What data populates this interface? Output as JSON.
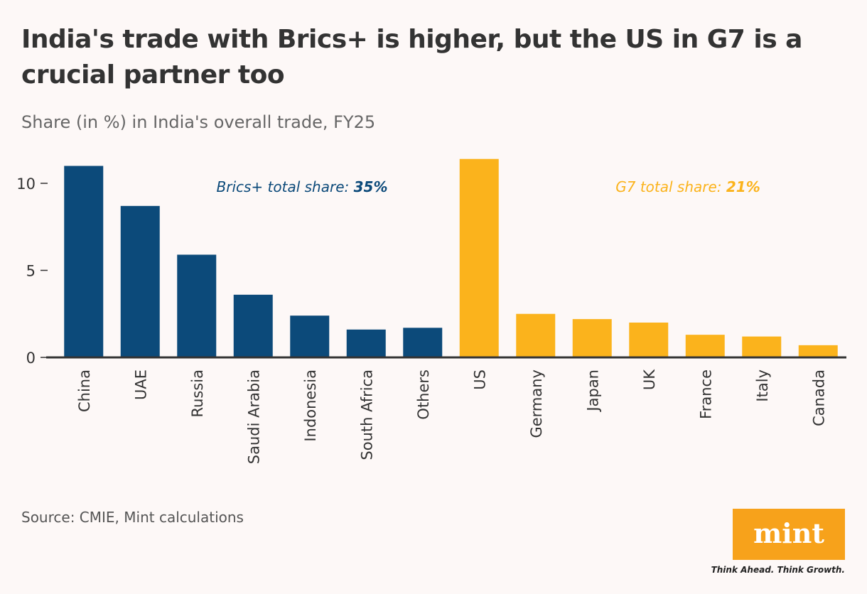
{
  "chart_data": {
    "type": "bar",
    "title": [
      "India's trade with Brics+ is higher, but the US in G7 is a",
      "crucial partner too"
    ],
    "subtitle": "Share (in %) in India's overall trade, FY25",
    "categories": [
      "China",
      "UAE",
      "Russia",
      "Saudi Arabia",
      "Indonesia",
      "South Africa",
      "Others",
      "US",
      "Germany",
      "Japan",
      "UK",
      "France",
      "Italy",
      "Canada"
    ],
    "values": [
      11.0,
      8.7,
      5.9,
      3.6,
      2.4,
      1.6,
      1.7,
      11.4,
      2.5,
      2.2,
      2.0,
      1.3,
      1.2,
      0.7
    ],
    "colors": [
      "#0c4a7a",
      "#0c4a7a",
      "#0c4a7a",
      "#0c4a7a",
      "#0c4a7a",
      "#0c4a7a",
      "#0c4a7a",
      "#fbb31c",
      "#fbb31c",
      "#fbb31c",
      "#fbb31c",
      "#fbb31c",
      "#fbb31c",
      "#fbb31c"
    ],
    "ylim": [
      0,
      11.5
    ],
    "yticks": [
      0,
      5,
      10
    ],
    "annotations": [
      {
        "text": "Brics+ total share:",
        "highlight": "35%",
        "color": "#0c4a7a"
      },
      {
        "text": "G7 total share:",
        "highlight": "21%",
        "color": "#fbb31c"
      }
    ],
    "source": "Source: CMIE, Mint calculations"
  },
  "logo": {
    "name": "mint",
    "tagline": "Think Ahead. Think Growth."
  }
}
